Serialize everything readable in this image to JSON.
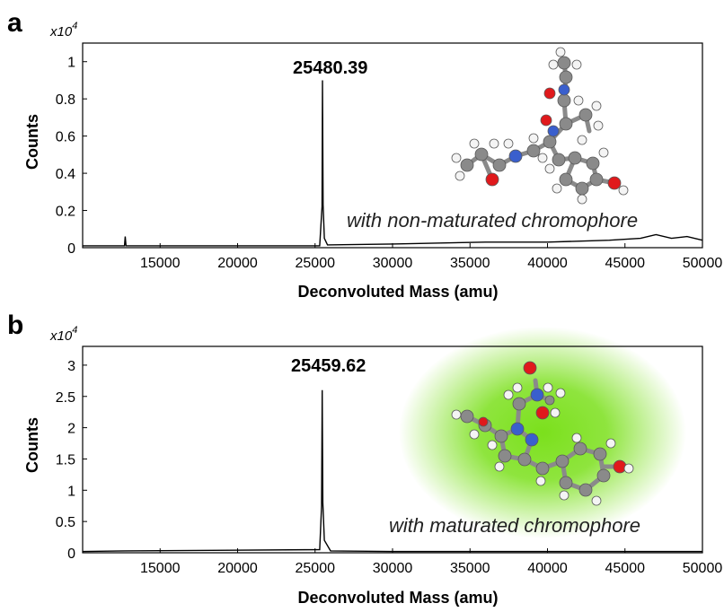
{
  "chart_data": [
    {
      "type": "line",
      "panel_label": "a",
      "multiplier": "x10",
      "multiplier_exp": "4",
      "xlabel": "Deconvoluted Mass (amu)",
      "ylabel": "Counts",
      "xlim": [
        10000,
        50000
      ],
      "ylim": [
        0,
        1.1
      ],
      "xticks": [
        "15000",
        "20000",
        "25000",
        "30000",
        "35000",
        "40000",
        "45000",
        "50000"
      ],
      "yticks": [
        "0",
        "0.2",
        "0.4",
        "0.6",
        "0.8",
        "1"
      ],
      "peak_label": "25480.39",
      "annotation": "with non-maturated chromophore",
      "grid": false,
      "series": [
        {
          "x": [
            10000,
            12700,
            12750,
            12800,
            19500,
            25300,
            25450,
            25480.39,
            25520,
            25600,
            25800,
            30000,
            36000,
            40000,
            44000,
            46000,
            47000,
            48000,
            49000,
            50000
          ],
          "y": [
            0.01,
            0.01,
            0.06,
            0.01,
            0.01,
            0.01,
            0.22,
            0.9,
            0.23,
            0.05,
            0.015,
            0.02,
            0.03,
            0.03,
            0.04,
            0.05,
            0.07,
            0.05,
            0.06,
            0.04
          ]
        }
      ]
    },
    {
      "type": "line",
      "panel_label": "b",
      "multiplier": "x10",
      "multiplier_exp": "4",
      "xlabel": "Deconvoluted Mass (amu)",
      "ylabel": "Counts",
      "xlim": [
        10000,
        50000
      ],
      "ylim": [
        0,
        3.3
      ],
      "xticks": [
        "15000",
        "20000",
        "25000",
        "30000",
        "35000",
        "40000",
        "45000",
        "50000"
      ],
      "yticks": [
        "0",
        "0.5",
        "1",
        "1.5",
        "2",
        "2.5",
        "3"
      ],
      "peak_label": "25459.62",
      "annotation": "with maturated chromophore",
      "grid": false,
      "series": [
        {
          "x": [
            10000,
            12700,
            25300,
            25420,
            25459.62,
            25500,
            25600,
            26000,
            30000,
            35000,
            40000,
            45000,
            50000
          ],
          "y": [
            0.02,
            0.03,
            0.05,
            0.75,
            2.6,
            0.8,
            0.2,
            0.03,
            0.02,
            0.02,
            0.02,
            0.02,
            0.02
          ]
        }
      ]
    }
  ],
  "colors": {
    "trace": "#000000",
    "glow": "#7be01c",
    "carbon": "#8a8a8a",
    "oxygen": "#e0191c",
    "nitrogen": "#3a5fcd",
    "hydrogen": "#f4f4f4"
  }
}
